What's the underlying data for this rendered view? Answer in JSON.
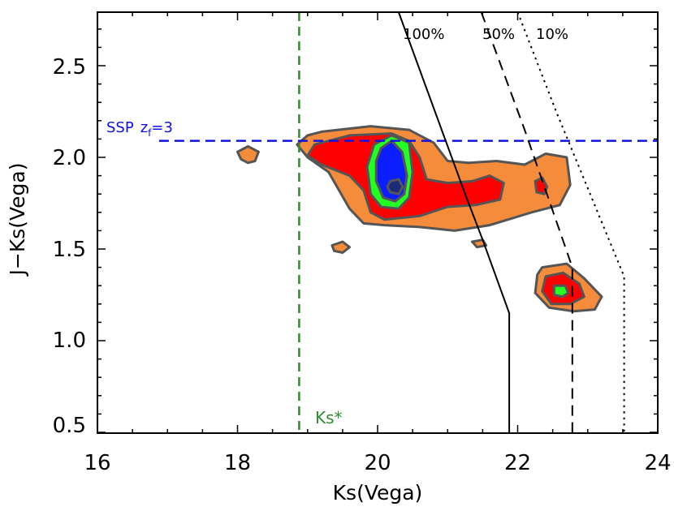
{
  "chart_data": {
    "type": "contour",
    "xlabel": "Ks(Vega)",
    "ylabel": "J−Ks(Vega)",
    "xlim": [
      16,
      24
    ],
    "ylim": [
      0.45,
      2.8
    ],
    "x_ticks": [
      16,
      18,
      20,
      22,
      24
    ],
    "y_ticks": [
      0.5,
      1.0,
      1.5,
      2.0,
      2.5
    ],
    "x_tick_labels": [
      "16",
      "18",
      "20",
      "22",
      "24"
    ],
    "y_tick_labels": [
      "0.5",
      "1.0",
      "1.5",
      "2.0",
      "2.5"
    ],
    "colors": {
      "orange": "#f48c3c",
      "red": "#ff0000",
      "green": "#22ff22",
      "blue": "#0a1eff",
      "navy": "#1c2a78",
      "outline": "#555555",
      "ssp_line": "#1010e0",
      "ks_line": "#2e8b2e"
    },
    "contour_levels": [
      {
        "name": "level-1",
        "color": "orange"
      },
      {
        "name": "level-2",
        "color": "red"
      },
      {
        "name": "level-3",
        "color": "green"
      },
      {
        "name": "level-4",
        "color": "blue"
      },
      {
        "name": "level-5",
        "color": "navy"
      }
    ],
    "contours": {
      "orange": [
        [
          [
            19.2,
            2.14
          ],
          [
            19.9,
            2.17
          ],
          [
            20.45,
            2.15
          ],
          [
            20.8,
            2.08
          ],
          [
            21.0,
            1.98
          ],
          [
            21.3,
            1.97
          ],
          [
            21.7,
            1.98
          ],
          [
            22.1,
            1.96
          ],
          [
            22.4,
            2.02
          ],
          [
            22.7,
            2.0
          ],
          [
            22.75,
            1.85
          ],
          [
            22.6,
            1.74
          ],
          [
            22.2,
            1.7
          ],
          [
            21.6,
            1.63
          ],
          [
            21.1,
            1.6
          ],
          [
            20.6,
            1.62
          ],
          [
            20.1,
            1.63
          ],
          [
            19.8,
            1.64
          ],
          [
            19.6,
            1.72
          ],
          [
            19.3,
            1.92
          ],
          [
            19.0,
            2.0
          ],
          [
            18.85,
            2.07
          ],
          [
            19.0,
            2.12
          ]
        ],
        [
          [
            18.0,
            2.03
          ],
          [
            18.15,
            2.06
          ],
          [
            18.3,
            2.03
          ],
          [
            18.25,
            1.98
          ],
          [
            18.15,
            1.97
          ],
          [
            18.05,
            1.99
          ]
        ],
        [
          [
            19.35,
            1.52
          ],
          [
            19.5,
            1.54
          ],
          [
            19.6,
            1.51
          ],
          [
            19.5,
            1.48
          ],
          [
            19.38,
            1.49
          ]
        ],
        [
          [
            21.35,
            1.54
          ],
          [
            21.5,
            1.55
          ],
          [
            21.55,
            1.52
          ],
          [
            21.42,
            1.51
          ]
        ],
        [
          [
            22.35,
            1.4
          ],
          [
            22.7,
            1.42
          ],
          [
            22.95,
            1.34
          ],
          [
            23.2,
            1.24
          ],
          [
            23.1,
            1.17
          ],
          [
            22.8,
            1.16
          ],
          [
            22.45,
            1.18
          ],
          [
            22.25,
            1.26
          ],
          [
            22.28,
            1.36
          ]
        ]
      ],
      "red": [
        [
          [
            19.1,
            2.07
          ],
          [
            19.6,
            2.12
          ],
          [
            20.2,
            2.13
          ],
          [
            20.45,
            2.09
          ],
          [
            20.6,
            2.0
          ],
          [
            20.7,
            1.88
          ],
          [
            21.0,
            1.86
          ],
          [
            21.35,
            1.87
          ],
          [
            21.6,
            1.9
          ],
          [
            21.8,
            1.86
          ],
          [
            21.75,
            1.77
          ],
          [
            21.4,
            1.74
          ],
          [
            21.0,
            1.73
          ],
          [
            20.6,
            1.68
          ],
          [
            20.1,
            1.66
          ],
          [
            19.9,
            1.7
          ],
          [
            19.8,
            1.82
          ],
          [
            19.6,
            1.9
          ],
          [
            19.2,
            1.96
          ],
          [
            19.0,
            2.01
          ]
        ],
        [
          [
            22.25,
            1.87
          ],
          [
            22.35,
            1.89
          ],
          [
            22.42,
            1.84
          ],
          [
            22.38,
            1.8
          ],
          [
            22.27,
            1.81
          ]
        ],
        [
          [
            22.4,
            1.35
          ],
          [
            22.65,
            1.37
          ],
          [
            22.88,
            1.31
          ],
          [
            22.95,
            1.24
          ],
          [
            22.75,
            1.2
          ],
          [
            22.48,
            1.2
          ],
          [
            22.35,
            1.27
          ]
        ]
      ],
      "green": [
        [
          [
            19.95,
            2.07
          ],
          [
            20.2,
            2.12
          ],
          [
            20.45,
            2.08
          ],
          [
            20.5,
            1.92
          ],
          [
            20.45,
            1.78
          ],
          [
            20.3,
            1.72
          ],
          [
            20.05,
            1.73
          ],
          [
            19.9,
            1.8
          ],
          [
            19.85,
            1.95
          ]
        ]
      ],
      "green2": [
        [
          [
            22.52,
            1.3
          ],
          [
            22.68,
            1.3
          ],
          [
            22.72,
            1.26
          ],
          [
            22.64,
            1.24
          ],
          [
            22.52,
            1.25
          ]
        ]
      ],
      "blue": [
        [
          [
            20.05,
            2.05
          ],
          [
            20.2,
            2.09
          ],
          [
            20.35,
            2.03
          ],
          [
            20.42,
            1.9
          ],
          [
            20.38,
            1.8
          ],
          [
            20.25,
            1.76
          ],
          [
            20.08,
            1.78
          ],
          [
            19.98,
            1.87
          ],
          [
            19.98,
            1.98
          ]
        ]
      ],
      "navy": [
        [
          [
            20.18,
            1.87
          ],
          [
            20.3,
            1.88
          ],
          [
            20.36,
            1.84
          ],
          [
            20.3,
            1.8
          ],
          [
            20.18,
            1.81
          ],
          [
            20.14,
            1.84
          ]
        ]
      ]
    },
    "completeness_lines": [
      {
        "label": "100%",
        "style": "solid",
        "points": [
          [
            20.3,
            2.83
          ],
          [
            21.25,
            1.8
          ],
          [
            21.5,
            1.55
          ],
          [
            21.88,
            1.15
          ],
          [
            21.88,
            0.45
          ]
        ]
      },
      {
        "label": "50%",
        "style": "dashed",
        "points": [
          [
            21.48,
            2.83
          ],
          [
            22.1,
            2.15
          ],
          [
            22.78,
            1.4
          ],
          [
            22.78,
            0.45
          ]
        ]
      },
      {
        "label": "10%",
        "style": "dotted",
        "points": [
          [
            22.0,
            2.83
          ],
          [
            22.55,
            2.25
          ],
          [
            23.52,
            1.35
          ],
          [
            23.52,
            0.45
          ]
        ]
      }
    ],
    "ssp_line": {
      "label_main": "SSP",
      "label_z": "z",
      "label_sub": "f",
      "label_eq": "=3",
      "y": 2.09,
      "x_start": 16.88,
      "x_end": 24.0
    },
    "ks_star_line": {
      "label": "Ks*",
      "x": 18.88
    },
    "line_labels": {
      "l100": "100%",
      "l50": "50%",
      "l10": "10%"
    }
  }
}
